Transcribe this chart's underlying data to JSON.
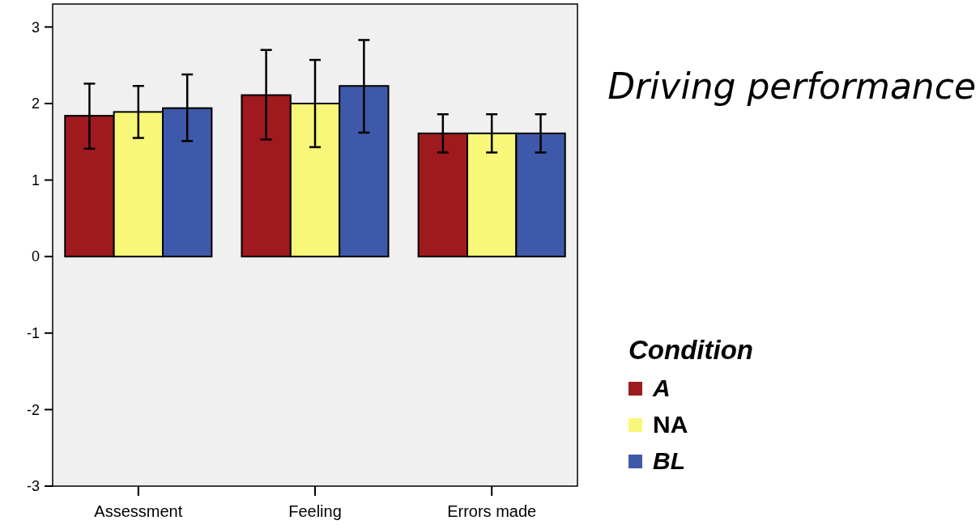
{
  "chart_data": {
    "type": "bar",
    "title": "Driving performance",
    "legend_title": "Condition",
    "categories": [
      "Assessment",
      "Feeling",
      "Errors made"
    ],
    "series": [
      {
        "name": "A",
        "color": "#9e1a1e",
        "values": [
          1.84,
          2.11,
          1.61
        ],
        "errors": [
          [
            1.41,
            2.26
          ],
          [
            1.53,
            2.7
          ],
          [
            1.36,
            1.86
          ]
        ]
      },
      {
        "name": "NA",
        "color": "#f8f77a",
        "values": [
          1.89,
          2.0,
          1.61
        ],
        "errors": [
          [
            1.55,
            2.23
          ],
          [
            1.43,
            2.57
          ],
          [
            1.36,
            1.86
          ]
        ]
      },
      {
        "name": "BL",
        "color": "#3f59aa",
        "values": [
          1.94,
          2.23,
          1.61
        ],
        "errors": [
          [
            1.51,
            2.38
          ],
          [
            1.62,
            2.83
          ],
          [
            1.36,
            1.86
          ]
        ]
      }
    ],
    "ylim": [
      -3,
      3.3
    ],
    "yticks": [
      -3,
      -2,
      -1,
      0,
      1,
      2,
      3
    ],
    "grid": false,
    "legend": "right"
  }
}
